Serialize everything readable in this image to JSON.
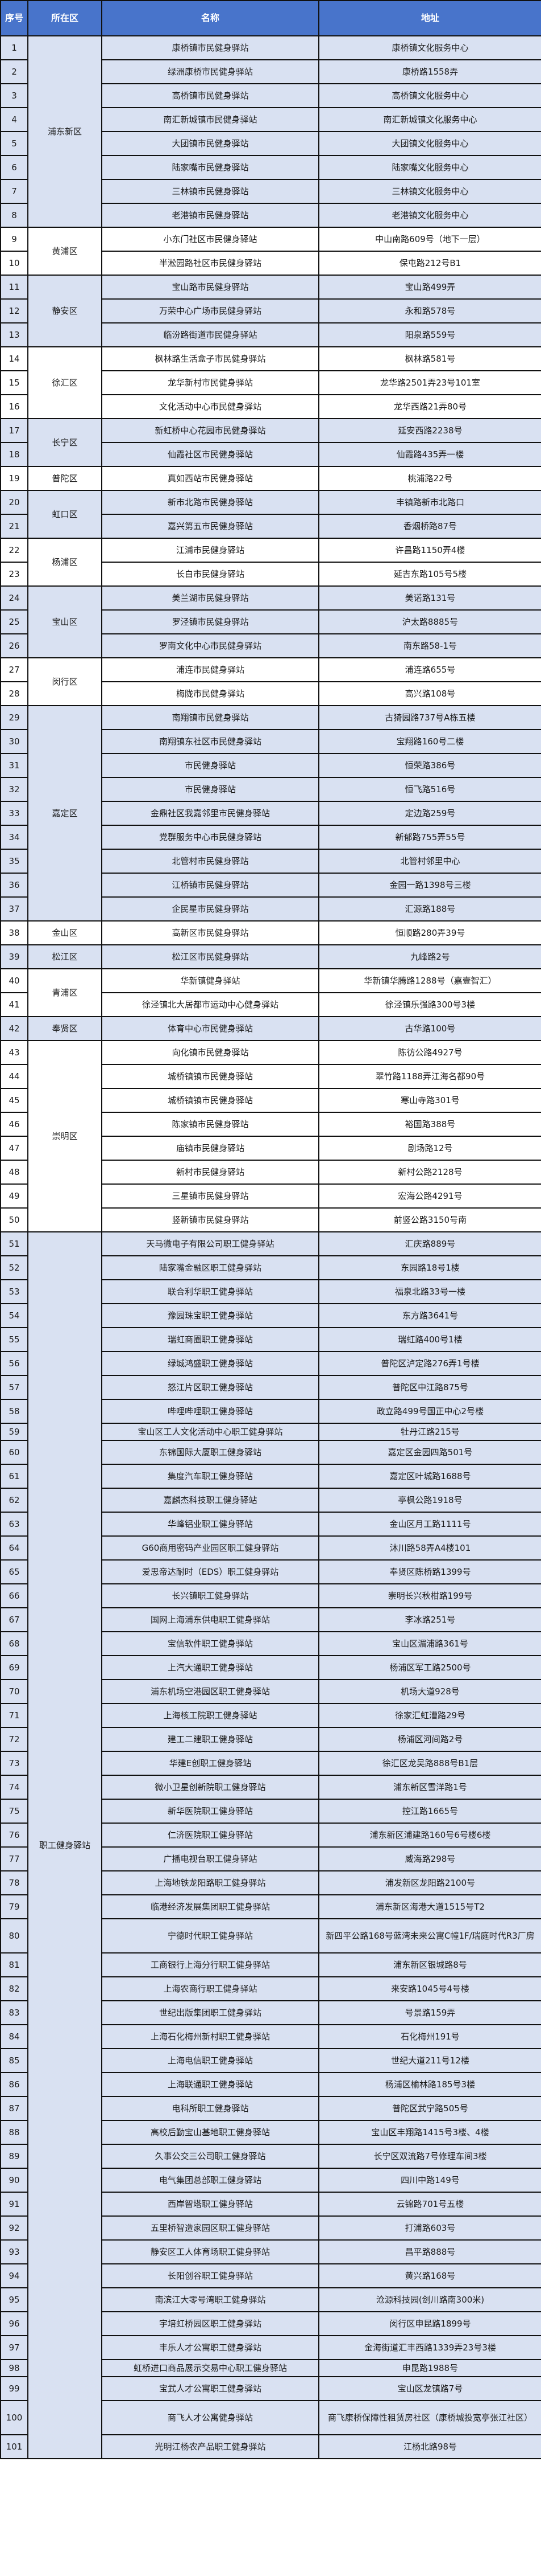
{
  "header": {
    "no": "序号",
    "district": "所在区",
    "name": "名称",
    "address": "地址"
  },
  "colors": {
    "header_bg": "#4874CB",
    "band_blue": "#D9E1F2",
    "band_white": "#FFFFFF"
  },
  "groups": [
    {
      "district": "浦东新区",
      "rows": [
        {
          "no": "1",
          "name": "康桥镇市民健身驿站",
          "address": "康桥镇文化服务中心"
        },
        {
          "no": "2",
          "name": "绿洲康桥市民健身驿站",
          "address": "康桥路1558弄"
        },
        {
          "no": "3",
          "name": "高桥镇市民健身驿站",
          "address": "高桥镇文化服务中心"
        },
        {
          "no": "4",
          "name": "南汇新城镇市民健身驿站",
          "address": "南汇新城镇文化服务中心"
        },
        {
          "no": "5",
          "name": "大团镇市民健身驿站",
          "address": "大团镇文化服务中心"
        },
        {
          "no": "6",
          "name": "陆家嘴市民健身驿站",
          "address": "陆家嘴文化服务中心"
        },
        {
          "no": "7",
          "name": "三林镇市民健身驿站",
          "address": "三林镇文化服务中心"
        },
        {
          "no": "8",
          "name": "老港镇市民健身驿站",
          "address": "老港镇文化服务中心"
        }
      ]
    },
    {
      "district": "黄浦区",
      "rows": [
        {
          "no": "9",
          "name": "小东门社区市民健身驿站",
          "address": "中山南路609号（地下一层）"
        },
        {
          "no": "10",
          "name": "半淞园路社区市民健身驿站",
          "address": "保屯路212号B1"
        }
      ]
    },
    {
      "district": "静安区",
      "rows": [
        {
          "no": "11",
          "name": "宝山路市民健身驿站",
          "address": "宝山路499弄"
        },
        {
          "no": "12",
          "name": "万荣中心广场市民健身驿站",
          "address": "永和路578号"
        },
        {
          "no": "13",
          "name": "临汾路街道市民健身驿站",
          "address": "阳泉路559号"
        }
      ]
    },
    {
      "district": "徐汇区",
      "rows": [
        {
          "no": "14",
          "name": "枫林路生活盒子市民健身驿站",
          "address": "枫林路581号"
        },
        {
          "no": "15",
          "name": "龙华新村市民健身驿站",
          "address": "龙华路2501弄23号101室"
        },
        {
          "no": "16",
          "name": "文化活动中心市民健身驿站",
          "address": "龙华西路21弄80号"
        }
      ]
    },
    {
      "district": "长宁区",
      "rows": [
        {
          "no": "17",
          "name": "新虹桥中心花园市民健身驿站",
          "address": "延安西路2238号"
        },
        {
          "no": "18",
          "name": "仙霞社区市民健身驿站",
          "address": "仙霞路435弄一楼"
        }
      ]
    },
    {
      "district": "普陀区",
      "rows": [
        {
          "no": "19",
          "name": "真如西站市民健身驿站",
          "address": "桃浦路22号"
        }
      ]
    },
    {
      "district": "虹口区",
      "rows": [
        {
          "no": "20",
          "name": "新市北路市民健身驿站",
          "address": "丰镇路新市北路口"
        },
        {
          "no": "21",
          "name": "嘉兴第五市民健身驿站",
          "address": "香烟桥路87号"
        }
      ]
    },
    {
      "district": "杨浦区",
      "rows": [
        {
          "no": "22",
          "name": "江浦市民健身驿站",
          "address": "许昌路1150弄4楼"
        },
        {
          "no": "23",
          "name": "长白市民健身驿站",
          "address": "延吉东路105号5楼"
        }
      ]
    },
    {
      "district": "宝山区",
      "rows": [
        {
          "no": "24",
          "name": "美兰湖市民健身驿站",
          "address": "美诺路131号"
        },
        {
          "no": "25",
          "name": "罗泾镇市民健身驿站",
          "address": "沪太路8885号"
        },
        {
          "no": "26",
          "name": "罗南文化中心市民健身驿站",
          "address": "南东路58-1号"
        }
      ]
    },
    {
      "district": "闵行区",
      "rows": [
        {
          "no": "27",
          "name": "浦连市民健身驿站",
          "address": "浦连路655号"
        },
        {
          "no": "28",
          "name": "梅陇市民健身驿站",
          "address": "高兴路108号"
        }
      ]
    },
    {
      "district": "嘉定区",
      "rows": [
        {
          "no": "29",
          "name": "南翔镇市民健身驿站",
          "address": "古猗园路737号A栋五楼"
        },
        {
          "no": "30",
          "name": "南翔镇东社区市民健身驿站",
          "address": "宝翔路160号二楼"
        },
        {
          "no": "31",
          "name": "市民健身驿站",
          "address": "恒荣路386号"
        },
        {
          "no": "32",
          "name": "市民健身驿站",
          "address": "恒飞路516号"
        },
        {
          "no": "33",
          "name": "金鼎社区我嘉邻里市民健身驿站",
          "address": "定边路259号"
        },
        {
          "no": "34",
          "name": "党群服务中心市民健身驿站",
          "address": "新郁路755弄55号"
        },
        {
          "no": "35",
          "name": "北管村市民健身驿站",
          "address": "北管村邻里中心"
        },
        {
          "no": "36",
          "name": "江桥镇市民健身驿站",
          "address": "金园一路1398号三楼"
        },
        {
          "no": "37",
          "name": "企民星市民健身驿站",
          "address": "汇源路188号"
        }
      ]
    },
    {
      "district": "金山区",
      "rows": [
        {
          "no": "38",
          "name": "高新区市民健身驿站",
          "address": "恒顺路280弄39号"
        }
      ]
    },
    {
      "district": "松江区",
      "rows": [
        {
          "no": "39",
          "name": "松江区市民健身驿站",
          "address": "九峰路2号"
        }
      ]
    },
    {
      "district": "青浦区",
      "rows": [
        {
          "no": "40",
          "name": "华新镇健身驿站",
          "address": "华新镇华腾路1288号（嘉壹智汇）"
        },
        {
          "no": "41",
          "name": "徐泾镇北大居都市运动中心健身驿站",
          "address": "徐泾镇乐强路300号3楼"
        }
      ]
    },
    {
      "district": "奉贤区",
      "rows": [
        {
          "no": "42",
          "name": "体育中心市民健身驿站",
          "address": "古华路100号"
        }
      ]
    },
    {
      "district": "崇明区",
      "rows": [
        {
          "no": "43",
          "name": "向化镇市民健身驿站",
          "address": "陈彷公路4927号"
        },
        {
          "no": "44",
          "name": "城桥镇镇市民健身驿站",
          "address": "翠竹路1188弄江海名都90号"
        },
        {
          "no": "45",
          "name": "城桥镇镇市民健身驿站",
          "address": "寒山寺路301号"
        },
        {
          "no": "46",
          "name": "陈家镇市民健身驿站",
          "address": "裕国路388号"
        },
        {
          "no": "47",
          "name": "庙镇市民健身驿站",
          "address": "剧场路12号"
        },
        {
          "no": "48",
          "name": "新村市民健身驿站",
          "address": "新村公路2128号"
        },
        {
          "no": "49",
          "name": "三星镇市民健身驿站",
          "address": "宏海公路4291号"
        },
        {
          "no": "50",
          "name": "竖新镇市民健身驿站",
          "address": "前竖公路3150号南"
        }
      ]
    },
    {
      "district": "职工健身驿站",
      "rows": [
        {
          "no": "51",
          "name": "天马微电子有限公司职工健身驿站",
          "address": "汇庆路889号"
        },
        {
          "no": "52",
          "name": "陆家嘴金融区职工健身驿站",
          "address": "东园路18号1楼"
        },
        {
          "no": "53",
          "name": "联合利华职工健身驿站",
          "address": "福泉北路33号一楼"
        },
        {
          "no": "54",
          "name": "豫园珠宝职工健身驿站",
          "address": "东方路3641号"
        },
        {
          "no": "55",
          "name": "瑞虹商圈职工健身驿站",
          "address": "瑞虹路400号1楼"
        },
        {
          "no": "56",
          "name": "绿城鸿盛职工健身驿站",
          "address": "普陀区泸定路276弄1号楼"
        },
        {
          "no": "57",
          "name": "怒江片区职工健身驿站",
          "address": "普陀区中江路875号"
        },
        {
          "no": "58",
          "name": "哔哩哔哩职工健身驿站",
          "address": "政立路499号国正中心2号楼"
        },
        {
          "no": "59",
          "name": "宝山区工人文化活动中心职工健身驿站",
          "address": "牡丹江路215号"
        },
        {
          "no": "60",
          "name": "东锦国际大厦职工健身驿站",
          "address": "嘉定区金园四路501号"
        },
        {
          "no": "61",
          "name": "集度汽车职工健身驿站",
          "address": "嘉定区叶城路1688号"
        },
        {
          "no": "62",
          "name": "嘉麟杰科技职工健身驿站",
          "address": "亭枫公路1918号"
        },
        {
          "no": "63",
          "name": "华峰铝业职工健身驿站",
          "address": "金山区月工路1111号"
        },
        {
          "no": "64",
          "name": "G60商用密码产业园区职工健身驿站",
          "address": "沐川路58弄A4楼101"
        },
        {
          "no": "65",
          "name": "爱思帝达耐时（EDS）职工健身驿站",
          "address": "奉贤区陈桥路1399号"
        },
        {
          "no": "66",
          "name": "长兴镇职工健身驿站",
          "address": "崇明长兴秋柑路199号"
        },
        {
          "no": "67",
          "name": "国网上海浦东供电职工健身驿站",
          "address": "李冰路251号"
        },
        {
          "no": "68",
          "name": "宝信软件职工健身驿站",
          "address": "宝山区湄浦路361号"
        },
        {
          "no": "69",
          "name": "上汽大通职工健身驿站",
          "address": "杨浦区军工路2500号"
        },
        {
          "no": "70",
          "name": "浦东机场空港园区职工健身驿站",
          "address": "机场大道928号"
        },
        {
          "no": "71",
          "name": "上海核工院职工健身驿站",
          "address": "徐家汇虹漕路29号"
        },
        {
          "no": "72",
          "name": "建工二建职工健身驿站",
          "address": "杨浦区河间路2号"
        },
        {
          "no": "73",
          "name": "华建E创职工健身驿站",
          "address": "徐汇区龙吴路888号B1层"
        },
        {
          "no": "74",
          "name": "微小卫星创新院职工健身驿站",
          "address": "浦东新区雪洋路1号"
        },
        {
          "no": "75",
          "name": "新华医院职工健身驿站",
          "address": "控江路1665号"
        },
        {
          "no": "76",
          "name": "仁济医院职工健身驿站",
          "address": "浦东新区浦建路160号6号楼6楼"
        },
        {
          "no": "77",
          "name": "广播电视台职工健身驿站",
          "address": "威海路298号"
        },
        {
          "no": "78",
          "name": "上海地铁龙阳路职工健身驿站",
          "address": "浦发新区龙阳路2100号"
        },
        {
          "no": "79",
          "name": "临港经济发展集团职工健身驿站",
          "address": "浦东新区海港大道1515号T2"
        },
        {
          "no": "80",
          "name": "宁德时代职工健身驿站",
          "address": "新四平公路168号蓝湾未来公寓C幢1F/瑞庭时代R3厂房"
        },
        {
          "no": "81",
          "name": "工商银行上海分行职工健身驿站",
          "address": "浦东新区银城路8号"
        },
        {
          "no": "82",
          "name": "上海农商行职工健身驿站",
          "address": "来安路1045号4号楼"
        },
        {
          "no": "83",
          "name": "世纪出版集团职工健身驿站",
          "address": "号景路159弄"
        },
        {
          "no": "84",
          "name": "上海石化梅州新村职工健身驿站",
          "address": "石化梅州191号"
        },
        {
          "no": "85",
          "name": "上海电信职工健身驿站",
          "address": "世纪大道211号12楼"
        },
        {
          "no": "86",
          "name": "上海联通职工健身驿站",
          "address": "杨浦区榆林路185号3楼"
        },
        {
          "no": "87",
          "name": "电科所职工健身驿站",
          "address": "普陀区武宁路505号"
        },
        {
          "no": "88",
          "name": "高校后勤宝山基地职工健身驿站",
          "address": "宝山区丰翔路1415号3楼、4楼"
        },
        {
          "no": "89",
          "name": "久事公交三公司职工健身驿站",
          "address": "长宁区双流路7号修理车间3楼"
        },
        {
          "no": "90",
          "name": "电气集团总部职工健身驿站",
          "address": "四川中路149号"
        },
        {
          "no": "91",
          "name": "西岸智塔职工健身驿站",
          "address": "云锦路701号五楼"
        },
        {
          "no": "92",
          "name": "五里桥智造家园区职工健身驿站",
          "address": "打浦路603号"
        },
        {
          "no": "93",
          "name": "静安区工人体育场职工健身驿站",
          "address": "昌平路888号"
        },
        {
          "no": "94",
          "name": "长阳创谷职工健身驿站",
          "address": "黄兴路168号"
        },
        {
          "no": "95",
          "name": "南滨江大零号湾职工健身驿站",
          "address": "沧源科技园(剑川路南300米)"
        },
        {
          "no": "96",
          "name": "宇培虹桥园区职工健身驿站",
          "address": "闵行区申昆路1899号"
        },
        {
          "no": "97",
          "name": "丰乐人才公寓职工健身驿站",
          "address": "金海街道汇丰西路1339弄23号3楼"
        },
        {
          "no": "98",
          "name": "虹桥进口商品展示交易中心职工健身驿站",
          "address": "申昆路1988号"
        },
        {
          "no": "99",
          "name": "宝武人才公寓职工健身驿站",
          "address": "宝山区龙镇路7号"
        },
        {
          "no": "100",
          "name": "商飞人才公寓健身驿站",
          "address": "商飞康桥保障性租赁房社区（康桥城投宽亭张江社区）"
        },
        {
          "no": "101",
          "name": "光明江杨农产品职工健身驿站",
          "address": "江杨北路98号"
        }
      ]
    }
  ]
}
